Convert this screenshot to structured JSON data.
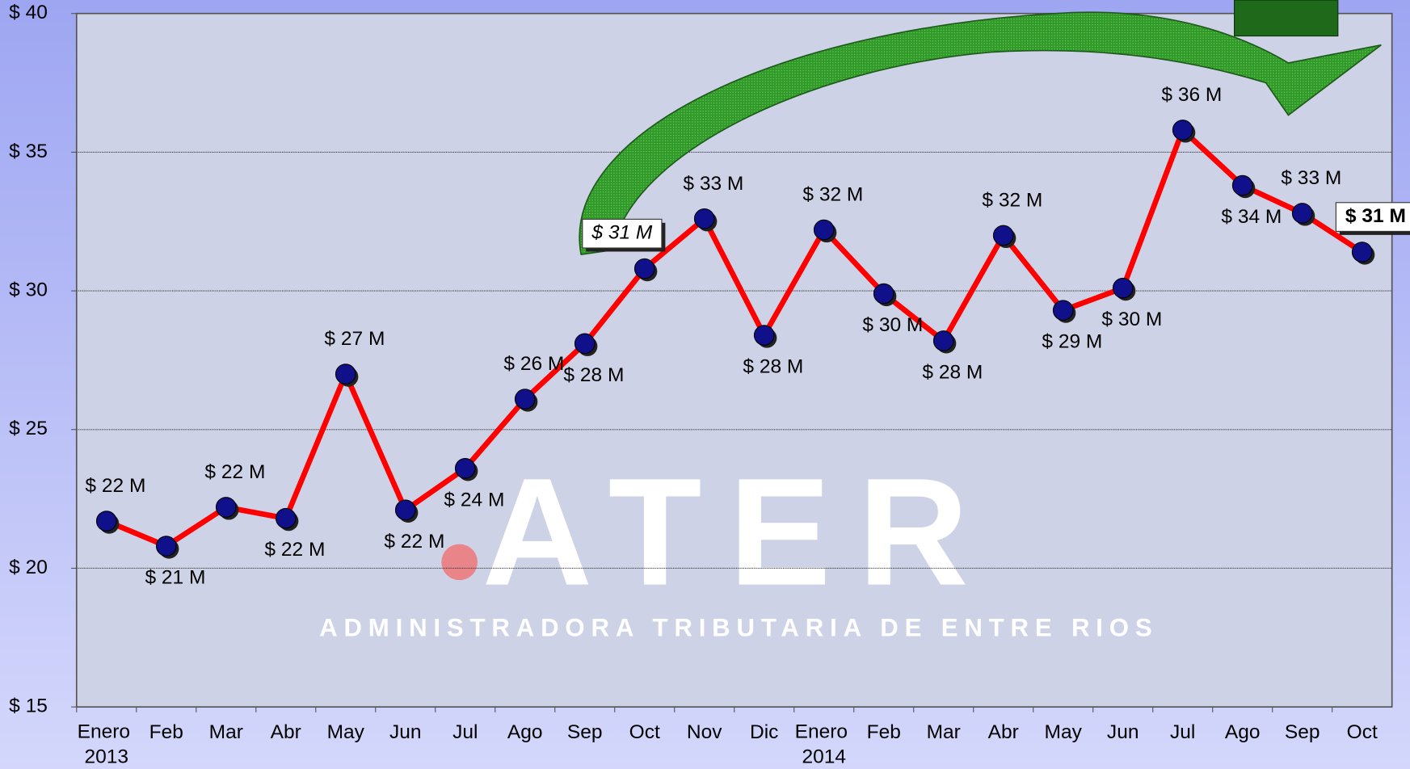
{
  "chart_data": {
    "type": "line",
    "categories": [
      "Enero 2013",
      "Feb",
      "Mar",
      "Abr",
      "May",
      "Jun",
      "Jul",
      "Ago",
      "Sep",
      "Oct",
      "Nov",
      "Dic",
      "Enero 2014",
      "Feb",
      "Mar",
      "Abr",
      "May",
      "Jun",
      "Jul",
      "Ago",
      "Sep",
      "Oct"
    ],
    "series": [
      {
        "color": "#ff0000",
        "values": [
          21.7,
          20.8,
          22.2,
          21.8,
          27.0,
          22.1,
          23.6,
          26.1,
          28.1,
          30.8,
          32.6,
          28.4,
          32.2,
          29.9,
          28.2,
          32.0,
          29.3,
          30.1,
          35.8,
          33.8,
          32.8,
          31.4
        ],
        "value_labels": [
          "$ 22 M",
          "$ 21 M",
          "$ 22 M",
          "$ 22 M",
          "$ 27 M",
          "$ 22 M",
          "$ 24 M",
          "$ 26 M",
          "$ 28 M",
          "$ 31 M",
          "$ 33 M",
          "$ 28 M",
          "$ 32 M",
          "$ 30 M",
          "$ 28 M",
          "$ 32 M",
          "$ 29 M",
          "$ 30 M",
          "$ 36 M",
          "$ 34 M",
          "$ 33 M",
          "$ 31 M"
        ]
      }
    ],
    "ylim": [
      15,
      40
    ],
    "yticks": [
      {
        "value": 15,
        "label": "$ 15"
      },
      {
        "value": 20,
        "label": "$ 20"
      },
      {
        "value": 25,
        "label": "$ 25"
      },
      {
        "value": 30,
        "label": "$ 30"
      },
      {
        "value": 35,
        "label": "$ 35"
      },
      {
        "value": 40,
        "label": "$ 40"
      }
    ],
    "grid": true,
    "watermark": {
      "logo": "ATER",
      "text": "ADMINISTRADORA TRIBUTARIA DE ENTRE RIOS"
    }
  }
}
